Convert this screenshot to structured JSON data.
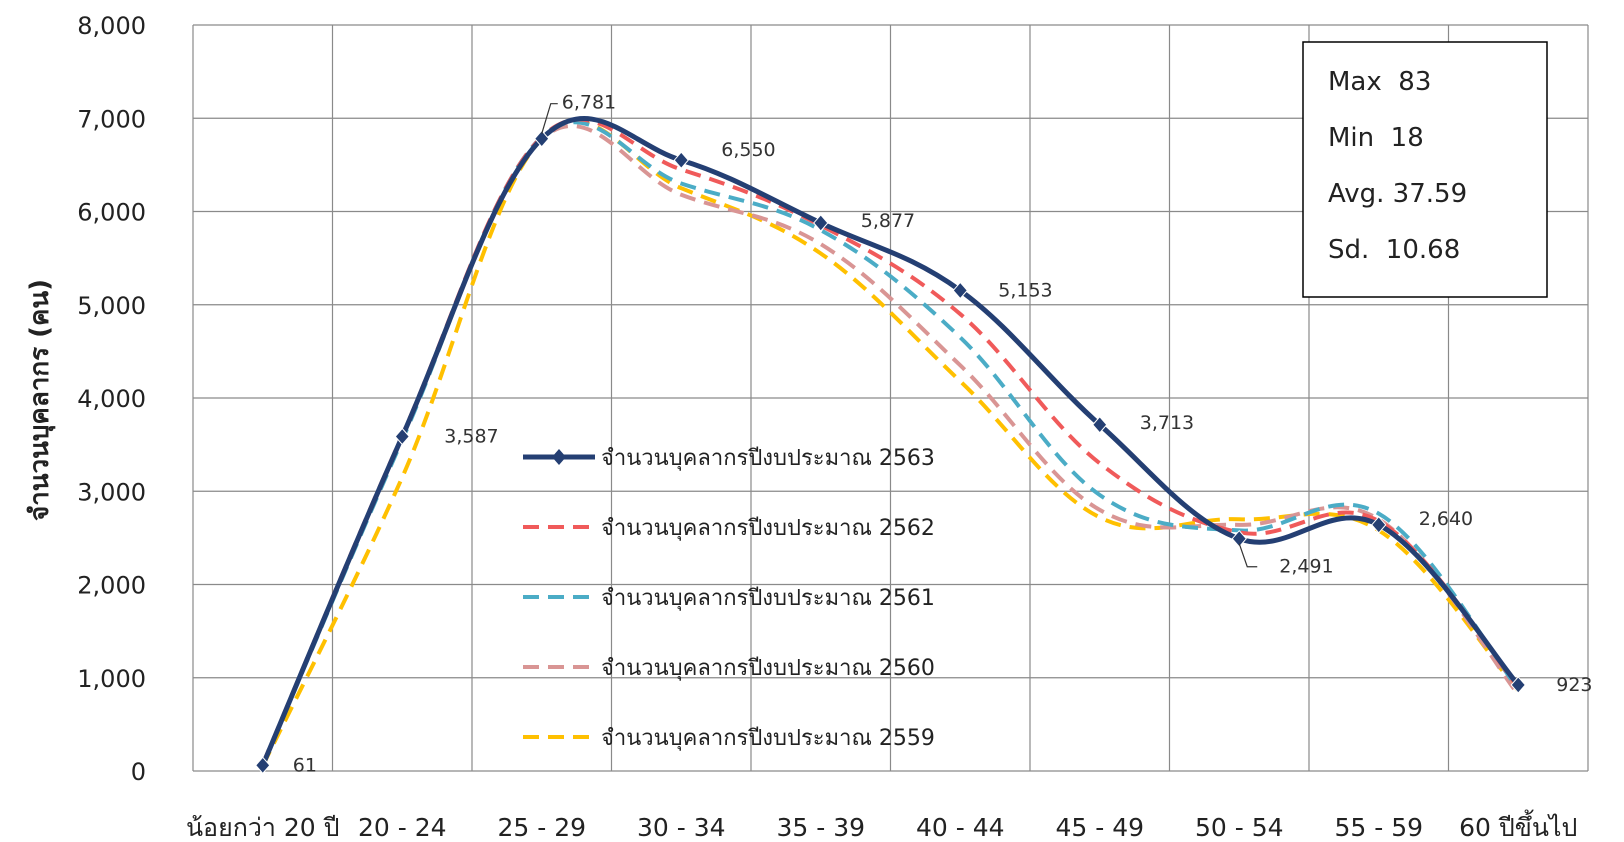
{
  "chart_data": {
    "type": "line",
    "ylabel": "จำนวนบุคลากร (คน)",
    "xlabel": "",
    "ylim": [
      0,
      8000
    ],
    "yticks": [
      0,
      1000,
      2000,
      3000,
      4000,
      5000,
      6000,
      7000,
      8000
    ],
    "ytick_labels": [
      "0",
      "1,000",
      "2,000",
      "3,000",
      "4,000",
      "5,000",
      "6,000",
      "7,000",
      "8,000"
    ],
    "grid": true,
    "legend_position": "center",
    "categories": [
      "น้อยกว่า 20 ปี",
      "20 - 24",
      "25 - 29",
      "30 - 34",
      "35 - 39",
      "40 - 44",
      "45 - 49",
      "50 - 54",
      "55 - 59",
      "60 ปีขึ้นไป"
    ],
    "series": [
      {
        "name": "จำนวนบุคลากรปีงบประมาณ 2563",
        "color": "#243f73",
        "style": "solid-marker",
        "values": [
          61,
          3587,
          6781,
          6550,
          5877,
          5153,
          3713,
          2491,
          2640,
          923
        ],
        "data_labels": [
          "61",
          "3,587",
          "6,781",
          "6,550",
          "5,877",
          "5,153",
          "3,713",
          "2,491",
          "2,640",
          "923"
        ]
      },
      {
        "name": "จำนวนบุคลากรปีงบประมาณ 2562",
        "color": "#f05a5a",
        "style": "dashed",
        "values": [
          70,
          3600,
          6800,
          6450,
          5850,
          4900,
          3300,
          2560,
          2680,
          900
        ]
      },
      {
        "name": "จำนวนบุคลากรปีงบประมาณ 2561",
        "color": "#4bacc6",
        "style": "dashed",
        "values": [
          60,
          3550,
          6800,
          6300,
          5800,
          4650,
          2960,
          2580,
          2760,
          880
        ]
      },
      {
        "name": "จำนวนบุคลากรปีงบประมาณ 2560",
        "color": "#d99594",
        "style": "dashed",
        "values": [
          75,
          3580,
          6780,
          6180,
          5650,
          4350,
          2800,
          2640,
          2700,
          820
        ]
      },
      {
        "name": "จำนวนบุคลากรปีงบประมาณ 2559",
        "color": "#ffc000",
        "style": "dashed",
        "values": [
          55,
          3150,
          6780,
          6250,
          5550,
          4180,
          2720,
          2700,
          2580,
          860
        ]
      }
    ],
    "stats_box": [
      "Max  83",
      "Min  18",
      "Avg. 37.59",
      "Sd.  10.68"
    ]
  }
}
